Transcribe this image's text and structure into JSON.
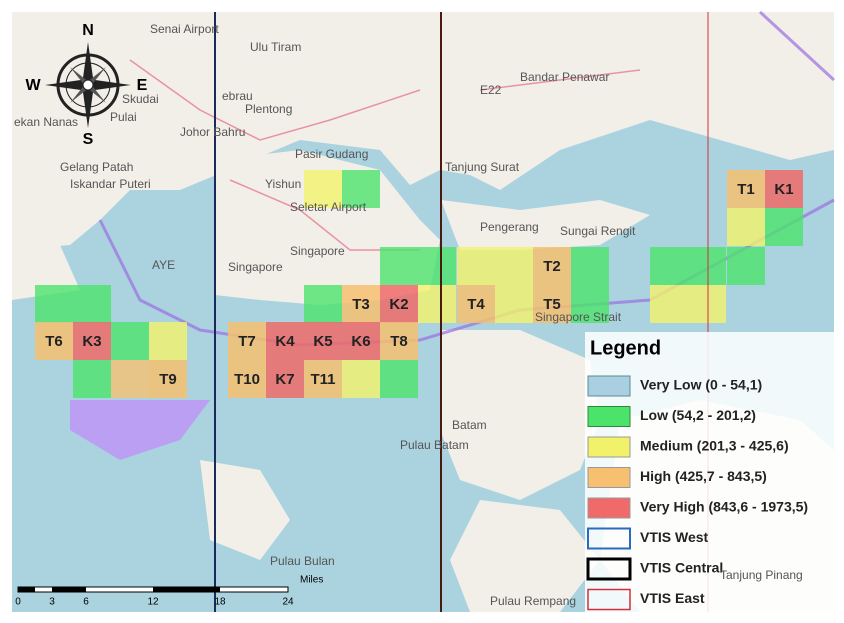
{
  "map": {
    "compass": [
      "N",
      "S",
      "E",
      "W"
    ],
    "places": [
      "Senai Airport",
      "Ulu Tiram",
      "Bandar Penawar",
      "E22",
      "Skudai",
      "Johor Bahru",
      "Plentong",
      "Pulai",
      "Gelang Patah",
      "Iskandar Puteri",
      "Pasir Gudang",
      "Tanjung Surat",
      "Yishun",
      "Seletar Airport",
      "Pengerang",
      "Sungai Rengit",
      "Singapore",
      "Singapore",
      "AYE",
      "Singapore Strait",
      "Batam",
      "Pulau Batam",
      "Pulau Bulan",
      "Pulau Rempang",
      "Tanjung Pinang",
      "ekan Nanas",
      "ebrau"
    ],
    "cell_labels": [
      "T1",
      "K1",
      "T2",
      "T4",
      "T5",
      "T3",
      "K2",
      "T6",
      "K3",
      "T7",
      "K4",
      "K5",
      "K6",
      "T8",
      "T9",
      "T10",
      "K7",
      "T11"
    ],
    "scale": [
      "0",
      "3",
      "6",
      "12",
      "18",
      "24",
      "Miles"
    ],
    "legend": {
      "title": "Legend",
      "entries": [
        "Very Low (0 - 54,1)",
        "Low (54,2 - 201,2)",
        "Medium (201,3 - 425,6)",
        "High (425,7 - 843,5)",
        "Very High (843,6 - 1973,5)",
        "VTIS West",
        "VTIS Central",
        "VTIS East"
      ]
    }
  }
}
